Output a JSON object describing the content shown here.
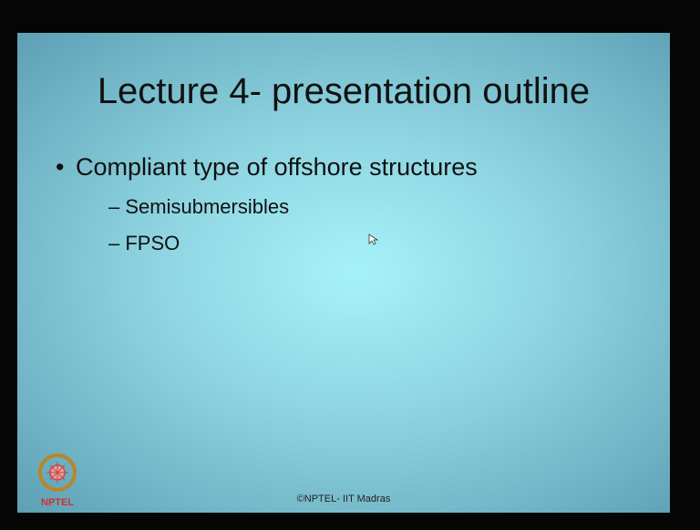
{
  "slide": {
    "title": "Lecture 4- presentation outline",
    "bullets": [
      {
        "text": "Compliant type of offshore structures",
        "subitems": [
          "Semisubmersibles",
          "FPSO"
        ]
      }
    ],
    "logo_text": "NPTEL",
    "footer": "©NPTEL- IIT Madras"
  }
}
